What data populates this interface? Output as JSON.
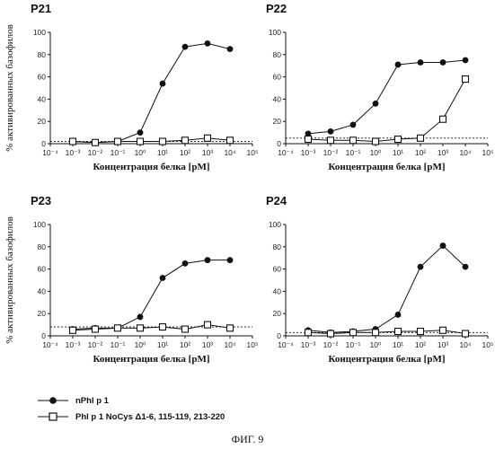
{
  "figure_label": "ФИГ. 9",
  "legend": [
    {
      "label": "nPhl p 1",
      "marker": "filled-circle",
      "color": "#111111"
    },
    {
      "label": "Phl p 1 NoCys Δ1-6, 115-119, 213-220",
      "marker": "open-square",
      "color": "#111111"
    }
  ],
  "chart_data": [
    {
      "type": "line",
      "title": "P21",
      "xlabel": "Концентрация белка [pM]",
      "ylabel": "% активированных базофилов",
      "x_scale": "log",
      "xlim": [
        0.0001,
        100000
      ],
      "ylim": [
        0,
        100
      ],
      "x_ticks": [
        "10⁻⁴",
        "10⁻³",
        "10⁻²",
        "10⁻¹",
        "10⁰",
        "10¹",
        "10²",
        "10³",
        "10⁴",
        "10⁵"
      ],
      "y_ticks": [
        0,
        20,
        40,
        60,
        80,
        100
      ],
      "baseline": 2,
      "series": [
        {
          "name": "nPhl p 1",
          "x": [
            0.001,
            0.01,
            0.1,
            1,
            10,
            100,
            1000,
            10000
          ],
          "y": [
            2,
            1,
            2,
            10,
            54,
            87,
            90,
            85
          ]
        },
        {
          "name": "Phl p 1 NoCys Δ1-6, 115-119, 213-220",
          "x": [
            0.001,
            0.01,
            0.1,
            1,
            10,
            100,
            1000,
            10000
          ],
          "y": [
            2,
            1,
            2,
            2,
            2,
            3,
            5,
            3
          ]
        }
      ]
    },
    {
      "type": "line",
      "title": "P22",
      "xlabel": "Концентрация белка [pM]",
      "ylabel": "",
      "x_scale": "log",
      "xlim": [
        0.0001,
        100000
      ],
      "ylim": [
        0,
        100
      ],
      "x_ticks": [
        "10⁻⁴",
        "10⁻³",
        "10⁻²",
        "10⁻¹",
        "10⁰",
        "10¹",
        "10²",
        "10³",
        "10⁴",
        "10⁵"
      ],
      "y_ticks": [
        0,
        20,
        40,
        60,
        80,
        100
      ],
      "baseline": 5,
      "series": [
        {
          "name": "nPhl p 1",
          "x": [
            0.001,
            0.01,
            0.1,
            1,
            10,
            100,
            1000,
            10000
          ],
          "y": [
            9,
            11,
            17,
            36,
            71,
            73,
            73,
            75
          ]
        },
        {
          "name": "Phl p 1 NoCys Δ1-6, 115-119, 213-220",
          "x": [
            0.001,
            0.01,
            0.1,
            1,
            10,
            100,
            1000,
            10000
          ],
          "y": [
            4,
            3,
            3,
            2,
            4,
            5,
            22,
            58
          ]
        }
      ]
    },
    {
      "type": "line",
      "title": "P23",
      "xlabel": "Концентрация белка [pM]",
      "ylabel": "% активированных базофилов",
      "x_scale": "log",
      "xlim": [
        0.0001,
        100000
      ],
      "ylim": [
        0,
        100
      ],
      "x_ticks": [
        "10⁻⁴",
        "10⁻³",
        "10⁻²",
        "10⁻¹",
        "10⁰",
        "10¹",
        "10²",
        "10³",
        "10⁴",
        "10⁵"
      ],
      "y_ticks": [
        0,
        20,
        40,
        60,
        80,
        100
      ],
      "baseline": 8,
      "series": [
        {
          "name": "nPhl p 1",
          "x": [
            0.001,
            0.01,
            0.1,
            1,
            10,
            100,
            1000,
            10000
          ],
          "y": [
            6,
            7,
            7,
            17,
            52,
            65,
            68,
            68
          ]
        },
        {
          "name": "Phl p 1 NoCys Δ1-6, 115-119, 213-220",
          "x": [
            0.001,
            0.01,
            0.1,
            1,
            10,
            100,
            1000,
            10000
          ],
          "y": [
            5,
            6,
            7,
            7,
            8,
            6,
            10,
            7
          ]
        }
      ]
    },
    {
      "type": "line",
      "title": "P24",
      "xlabel": "Концентрация белка [pM]",
      "ylabel": "",
      "x_scale": "log",
      "xlim": [
        0.0001,
        100000
      ],
      "ylim": [
        0,
        100
      ],
      "x_ticks": [
        "10⁻⁴",
        "10⁻³",
        "10⁻²",
        "10⁻¹",
        "10⁰",
        "10¹",
        "10²",
        "10³",
        "10⁴",
        "10⁵"
      ],
      "y_ticks": [
        0,
        20,
        40,
        60,
        80,
        100
      ],
      "baseline": 3,
      "series": [
        {
          "name": "nPhl p 1",
          "x": [
            0.001,
            0.01,
            0.1,
            1,
            10,
            100,
            1000,
            10000
          ],
          "y": [
            5,
            3,
            4,
            6,
            19,
            62,
            81,
            62
          ]
        },
        {
          "name": "Phl p 1 NoCys Δ1-6, 115-119, 213-220",
          "x": [
            0.001,
            0.01,
            0.1,
            1,
            10,
            100,
            1000,
            10000
          ],
          "y": [
            3,
            2,
            3,
            3,
            4,
            4,
            5,
            2
          ]
        }
      ]
    }
  ]
}
